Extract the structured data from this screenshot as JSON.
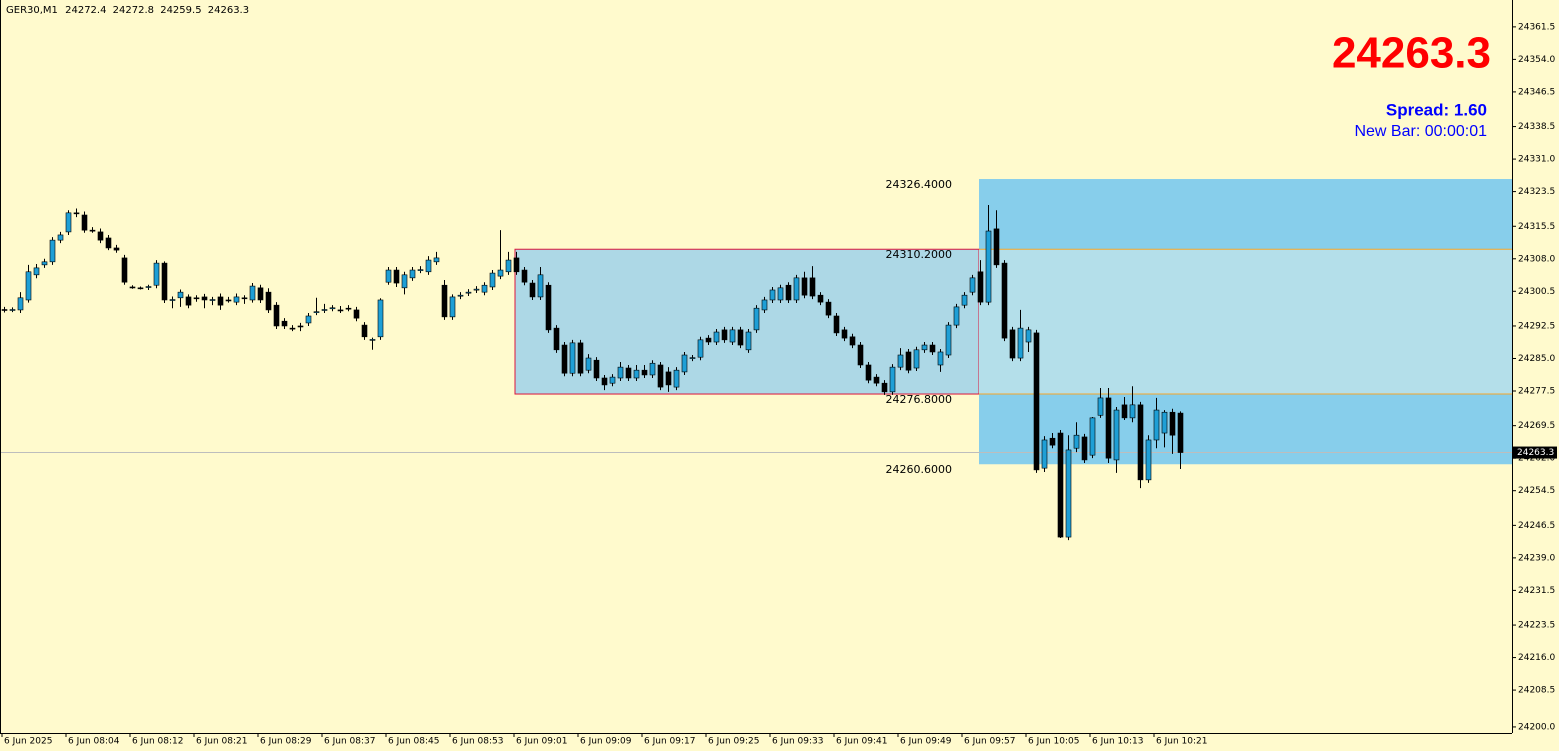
{
  "chart_data": {
    "type": "candlestick",
    "symbol": "GER30,M1",
    "price_display_index": 147,
    "spread_label": "Spread: 1.60",
    "new_bar_label": "New Bar: 00:00:01",
    "up_color": "#1e9fd6",
    "down_color": "#000000",
    "background": "#fffacd",
    "ylim": [
      24198.6,
      24367.7
    ],
    "yticks": [
      {
        "value": 24200.0,
        "label": "24200.0"
      },
      {
        "value": 24208.5,
        "label": "24208.5"
      },
      {
        "value": 24216.0,
        "label": "24216.0"
      },
      {
        "value": 24223.5,
        "label": "24223.5"
      },
      {
        "value": 24231.5,
        "label": "24231.5"
      },
      {
        "value": 24239.0,
        "label": "24239.0"
      },
      {
        "value": 24246.5,
        "label": "24246.5"
      },
      {
        "value": 24254.5,
        "label": "24254.5"
      },
      {
        "value": 24262.0,
        "label": "24262.0"
      },
      {
        "value": 24269.5,
        "label": "24269.5"
      },
      {
        "value": 24277.5,
        "label": "24277.5"
      },
      {
        "value": 24285.0,
        "label": "24285.0"
      },
      {
        "value": 24292.5,
        "label": "24292.5"
      },
      {
        "value": 24300.5,
        "label": "24300.5"
      },
      {
        "value": 24308.0,
        "label": "24308.0"
      },
      {
        "value": 24315.5,
        "label": "24315.5"
      },
      {
        "value": 24323.5,
        "label": "24323.5"
      },
      {
        "value": 24331.0,
        "label": "24331.0"
      },
      {
        "value": 24338.5,
        "label": "24338.5"
      },
      {
        "value": 24346.5,
        "label": "24346.5"
      },
      {
        "value": 24354.0,
        "label": "24354.0"
      },
      {
        "value": 24361.5,
        "label": "24361.5"
      }
    ],
    "zones": [
      {
        "start": 64,
        "color": "#add8e6",
        "border": "#dc143c",
        "top": {
          "value": 24310.2,
          "label": "24310.2000"
        },
        "bottom": {
          "value": 24276.8,
          "label": "24276.8000"
        }
      },
      {
        "start": 122,
        "color": "#87ceeb",
        "border": "#87ceeb",
        "top": {
          "value": 24326.4,
          "label": "24326.4000"
        },
        "bottom": {
          "value": 24260.6,
          "label": "24260.6000"
        }
      }
    ],
    "categories": [
      "6 Jun 2025",
      null,
      null,
      null,
      null,
      null,
      null,
      null,
      "6 Jun 08:04",
      null,
      null,
      null,
      null,
      null,
      null,
      null,
      "6 Jun 08:12",
      null,
      null,
      null,
      null,
      null,
      null,
      null,
      "6 Jun 08:21",
      null,
      null,
      null,
      null,
      null,
      null,
      null,
      "6 Jun 08:29",
      null,
      null,
      null,
      null,
      null,
      null,
      null,
      "6 Jun 08:37",
      null,
      null,
      null,
      null,
      null,
      null,
      null,
      "6 Jun 08:45",
      null,
      null,
      null,
      null,
      null,
      null,
      null,
      "6 Jun 08:53",
      null,
      null,
      null,
      null,
      null,
      null,
      null,
      "6 Jun 09:01",
      null,
      null,
      null,
      null,
      null,
      null,
      null,
      "6 Jun 09:09",
      null,
      null,
      null,
      null,
      null,
      null,
      null,
      "6 Jun 09:17",
      null,
      null,
      null,
      null,
      null,
      null,
      null,
      "6 Jun 09:25",
      null,
      null,
      null,
      null,
      null,
      null,
      null,
      "6 Jun 09:33",
      null,
      null,
      null,
      null,
      null,
      null,
      null,
      "6 Jun 09:41",
      null,
      null,
      null,
      null,
      null,
      null,
      null,
      "6 Jun 09:49",
      null,
      null,
      null,
      null,
      null,
      null,
      null,
      "6 Jun 09:57",
      null,
      null,
      null,
      null,
      null,
      null,
      null,
      "6 Jun 10:05",
      null,
      null,
      null,
      null,
      null,
      null,
      null,
      "6 Jun 10:13",
      null,
      null,
      null,
      null,
      null,
      null,
      null,
      "6 Jun 10:21",
      null,
      null,
      null
    ],
    "ohlc": [
      [
        24296.3,
        24296.9,
        24295.6,
        24296.2
      ],
      [
        24296.2,
        24296.8,
        24295.7,
        24296.3
      ],
      [
        24296.2,
        24300.3,
        24295.5,
        24299.0
      ],
      [
        24298.5,
        24306.6,
        24297.9,
        24305.0
      ],
      [
        24304.3,
        24306.8,
        24303.5,
        24305.9
      ],
      [
        24306.6,
        24308.0,
        24305.9,
        24307.3
      ],
      [
        24307.3,
        24313.0,
        24306.6,
        24312.3
      ],
      [
        24312.3,
        24314.2,
        24311.6,
        24313.5
      ],
      [
        24314.2,
        24319.2,
        24313.5,
        24318.6
      ],
      [
        24318.6,
        24319.6,
        24317.6,
        24318.4
      ],
      [
        24318.1,
        24318.9,
        24314.0,
        24314.6
      ],
      [
        24314.6,
        24315.3,
        24314.0,
        24314.4
      ],
      [
        24314.2,
        24315.0,
        24311.6,
        24312.3
      ],
      [
        24312.8,
        24313.5,
        24310.0,
        24310.5
      ],
      [
        24310.5,
        24311.2,
        24309.4,
        24310.0
      ],
      [
        24308.2,
        24308.9,
        24302.0,
        24302.6
      ],
      [
        24301.5,
        24301.9,
        24301.1,
        24301.4
      ],
      [
        24301.3,
        24301.6,
        24300.9,
        24301.2
      ],
      [
        24301.5,
        24302.0,
        24300.8,
        24301.6
      ],
      [
        24301.9,
        24307.7,
        24301.2,
        24307.0
      ],
      [
        24307.0,
        24307.4,
        24297.8,
        24298.5
      ],
      [
        24298.5,
        24299.3,
        24296.6,
        24298.6
      ],
      [
        24299.0,
        24300.9,
        24296.9,
        24300.3
      ],
      [
        24299.2,
        24299.8,
        24296.6,
        24297.3
      ],
      [
        24299.0,
        24299.6,
        24298.1,
        24298.9
      ],
      [
        24299.2,
        24299.9,
        24296.6,
        24298.5
      ],
      [
        24298.5,
        24299.2,
        24297.3,
        24298.6
      ],
      [
        24299.2,
        24300.0,
        24296.2,
        24297.3
      ],
      [
        24298.5,
        24299.2,
        24297.9,
        24298.4
      ],
      [
        24298.0,
        24300.0,
        24297.3,
        24299.2
      ],
      [
        24299.0,
        24299.6,
        24297.6,
        24298.9
      ],
      [
        24298.5,
        24302.4,
        24297.9,
        24301.7
      ],
      [
        24301.3,
        24302.0,
        24297.8,
        24298.5
      ],
      [
        24300.3,
        24301.2,
        24295.5,
        24296.2
      ],
      [
        24297.3,
        24298.0,
        24291.8,
        24292.5
      ],
      [
        24293.6,
        24294.3,
        24291.8,
        24292.5
      ],
      [
        24292.0,
        24292.7,
        24291.3,
        24291.9
      ],
      [
        24292.5,
        24293.2,
        24291.3,
        24292.4
      ],
      [
        24293.2,
        24295.5,
        24292.5,
        24294.8
      ],
      [
        24295.7,
        24299.0,
        24295.0,
        24295.8
      ],
      [
        24296.2,
        24297.6,
        24295.5,
        24296.3
      ],
      [
        24296.6,
        24297.3,
        24295.9,
        24296.7
      ],
      [
        24296.2,
        24297.1,
        24295.5,
        24296.1
      ],
      [
        24296.6,
        24297.3,
        24295.9,
        24296.5
      ],
      [
        24296.2,
        24296.9,
        24293.6,
        24294.3
      ],
      [
        24292.7,
        24293.4,
        24289.3,
        24290.0
      ],
      [
        24289.3,
        24289.8,
        24287.0,
        24289.4
      ],
      [
        24290.0,
        24298.9,
        24289.3,
        24298.5
      ],
      [
        24302.6,
        24306.1,
        24302.0,
        24305.4
      ],
      [
        24305.4,
        24306.1,
        24301.5,
        24302.4
      ],
      [
        24301.3,
        24305.0,
        24299.8,
        24304.3
      ],
      [
        24303.6,
        24306.1,
        24302.9,
        24305.4
      ],
      [
        24305.4,
        24306.3,
        24304.7,
        24305.5
      ],
      [
        24305.0,
        24308.6,
        24304.3,
        24307.7
      ],
      [
        24307.3,
        24309.6,
        24306.6,
        24308.2
      ],
      [
        24301.9,
        24303.1,
        24293.9,
        24294.6
      ],
      [
        24294.6,
        24299.8,
        24293.9,
        24299.2
      ],
      [
        24299.4,
        24300.3,
        24298.7,
        24299.6
      ],
      [
        24300.1,
        24301.0,
        24299.4,
        24300.3
      ],
      [
        24300.8,
        24301.7,
        24300.1,
        24301.0
      ],
      [
        24300.3,
        24302.6,
        24299.6,
        24301.9
      ],
      [
        24301.5,
        24305.4,
        24300.8,
        24304.7
      ],
      [
        24304.0,
        24314.6,
        24303.3,
        24305.4
      ],
      [
        24305.0,
        24309.6,
        24304.3,
        24307.7
      ],
      [
        24308.2,
        24309.6,
        24304.3,
        24305.0
      ],
      [
        24305.4,
        24306.1,
        24301.9,
        24302.6
      ],
      [
        24302.4,
        24303.1,
        24298.5,
        24299.2
      ],
      [
        24299.2,
        24306.1,
        24298.5,
        24304.3
      ],
      [
        24301.9,
        24302.6,
        24290.9,
        24291.6
      ],
      [
        24292.0,
        24292.7,
        24286.3,
        24287.0
      ],
      [
        24288.1,
        24288.8,
        24280.9,
        24281.6
      ],
      [
        24281.6,
        24289.3,
        24280.9,
        24288.6
      ],
      [
        24288.6,
        24289.3,
        24280.9,
        24281.6
      ],
      [
        24282.3,
        24286.0,
        24281.6,
        24285.1
      ],
      [
        24284.6,
        24285.3,
        24279.8,
        24280.5
      ],
      [
        24280.5,
        24281.2,
        24277.7,
        24278.9
      ],
      [
        24279.3,
        24281.4,
        24278.6,
        24280.7
      ],
      [
        24280.5,
        24284.2,
        24279.8,
        24283.0
      ],
      [
        24282.8,
        24283.5,
        24279.8,
        24280.5
      ],
      [
        24280.5,
        24283.5,
        24279.8,
        24282.3
      ],
      [
        24282.3,
        24283.5,
        24280.5,
        24281.2
      ],
      [
        24281.2,
        24284.6,
        24280.5,
        24283.9
      ],
      [
        24283.5,
        24284.2,
        24277.7,
        24278.4
      ],
      [
        24281.9,
        24283.0,
        24277.3,
        24278.9
      ],
      [
        24278.4,
        24283.0,
        24277.7,
        24282.3
      ],
      [
        24281.9,
        24286.5,
        24281.2,
        24285.8
      ],
      [
        24285.1,
        24285.8,
        24284.4,
        24285.2
      ],
      [
        24285.3,
        24290.0,
        24284.6,
        24289.3
      ],
      [
        24289.7,
        24290.4,
        24288.1,
        24288.8
      ],
      [
        24288.8,
        24291.8,
        24288.1,
        24291.1
      ],
      [
        24291.6,
        24292.3,
        24288.6,
        24289.3
      ],
      [
        24288.8,
        24292.3,
        24288.1,
        24291.6
      ],
      [
        24291.6,
        24292.3,
        24287.4,
        24288.1
      ],
      [
        24287.0,
        24291.8,
        24286.3,
        24291.1
      ],
      [
        24291.6,
        24297.3,
        24290.9,
        24296.6
      ],
      [
        24296.2,
        24299.2,
        24295.5,
        24298.5
      ],
      [
        24298.5,
        24301.5,
        24297.8,
        24300.8
      ],
      [
        24298.5,
        24302.0,
        24297.8,
        24301.3
      ],
      [
        24301.9,
        24302.6,
        24297.8,
        24298.5
      ],
      [
        24298.5,
        24304.3,
        24297.8,
        24303.6
      ],
      [
        24303.6,
        24305.0,
        24298.9,
        24299.6
      ],
      [
        24303.6,
        24306.3,
        24298.7,
        24299.4
      ],
      [
        24299.6,
        24300.3,
        24297.3,
        24298.0
      ],
      [
        24298.0,
        24298.7,
        24294.3,
        24295.0
      ],
      [
        24294.8,
        24295.5,
        24290.2,
        24290.9
      ],
      [
        24291.6,
        24292.3,
        24289.0,
        24289.7
      ],
      [
        24290.0,
        24290.7,
        24287.4,
        24288.1
      ],
      [
        24288.1,
        24288.8,
        24282.8,
        24283.5
      ],
      [
        24283.5,
        24284.2,
        24279.3,
        24280.0
      ],
      [
        24280.7,
        24281.4,
        24278.6,
        24279.3
      ],
      [
        24279.3,
        24280.0,
        24276.6,
        24277.3
      ],
      [
        24277.3,
        24283.7,
        24276.6,
        24283.0
      ],
      [
        24283.0,
        24287.4,
        24282.3,
        24285.8
      ],
      [
        24286.5,
        24287.2,
        24281.6,
        24282.3
      ],
      [
        24282.8,
        24287.7,
        24282.1,
        24287.0
      ],
      [
        24287.0,
        24288.8,
        24286.3,
        24288.1
      ],
      [
        24288.1,
        24288.8,
        24285.8,
        24286.5
      ],
      [
        24283.5,
        24287.2,
        24281.9,
        24286.5
      ],
      [
        24285.8,
        24293.4,
        24285.1,
        24292.7
      ],
      [
        24292.7,
        24297.6,
        24292.0,
        24296.9
      ],
      [
        24297.3,
        24300.3,
        24296.6,
        24299.6
      ],
      [
        24300.3,
        24304.3,
        24299.6,
        24303.6
      ],
      [
        24305.0,
        24307.7,
        24297.3,
        24298.0
      ],
      [
        24298.0,
        24320.4,
        24297.3,
        24314.4
      ],
      [
        24314.9,
        24319.2,
        24305.9,
        24306.6
      ],
      [
        24307.0,
        24307.7,
        24289.0,
        24289.7
      ],
      [
        24291.6,
        24292.3,
        24284.4,
        24285.1
      ],
      [
        24285.1,
        24296.2,
        24284.4,
        24292.0
      ],
      [
        24288.8,
        24292.3,
        24286.5,
        24291.6
      ],
      [
        24290.9,
        24291.6,
        24258.6,
        24259.3
      ],
      [
        24259.7,
        24267.1,
        24258.8,
        24266.2
      ],
      [
        24266.6,
        24267.8,
        24264.3,
        24265.0
      ],
      [
        24267.8,
        24268.5,
        24243.6,
        24243.8
      ],
      [
        24243.8,
        24267.3,
        24243.1,
        24263.9
      ],
      [
        24264.3,
        24270.3,
        24263.4,
        24267.3
      ],
      [
        24266.9,
        24267.6,
        24260.9,
        24261.6
      ],
      [
        24262.7,
        24271.5,
        24262.0,
        24271.3
      ],
      [
        24271.9,
        24278.2,
        24271.3,
        24275.9
      ],
      [
        24275.9,
        24278.2,
        24260.9,
        24262.0
      ],
      [
        24261.6,
        24273.8,
        24258.6,
        24273.1
      ],
      [
        24274.3,
        24276.1,
        24270.8,
        24271.3
      ],
      [
        24271.3,
        24278.6,
        24270.3,
        24274.3
      ],
      [
        24274.3,
        24275.0,
        24255.1,
        24257.0
      ],
      [
        24257.0,
        24267.3,
        24256.3,
        24266.2
      ],
      [
        24266.2,
        24275.9,
        24264.3,
        24273.1
      ],
      [
        24267.8,
        24273.1,
        24264.5,
        24272.6
      ],
      [
        24272.6,
        24273.4,
        24263.0,
        24267.3
      ],
      [
        24272.4,
        24272.8,
        24259.5,
        24263.3
      ]
    ]
  }
}
